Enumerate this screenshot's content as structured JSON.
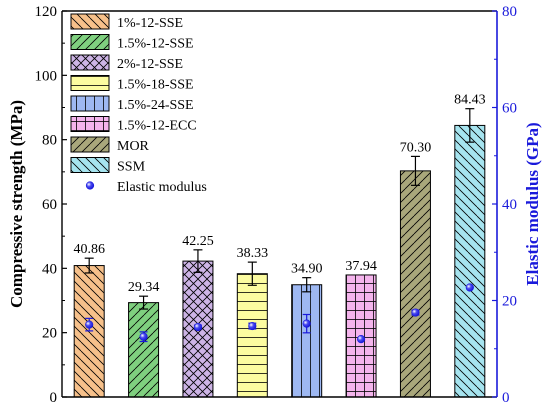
{
  "chart_data": {
    "type": "bar",
    "categories": [
      "1%-12-SSE",
      "1.5%-12-SSE",
      "2%-12-SSE",
      "1.5%-18-SSE",
      "1.5%-24-SSE",
      "1.5%-12-ECC",
      "MOR",
      "SSM"
    ],
    "series": [
      {
        "name": "",
        "axis": "left",
        "values": [
          40.86,
          29.34,
          42.25,
          38.33,
          34.9,
          37.94,
          70.3,
          84.43
        ],
        "value_labels": [
          "40.86",
          "29.34",
          "42.25",
          "38.33",
          "34.90",
          "37.94",
          "70.30",
          "84.43"
        ],
        "errors": [
          2.3,
          2.0,
          3.5,
          3.6,
          2.2,
          0,
          4.5,
          5.2
        ]
      },
      {
        "name": "Elastic modulus",
        "axis": "right",
        "values": [
          15.0,
          12.5,
          14.5,
          14.7,
          15.2,
          12.0,
          17.5,
          22.7
        ],
        "errors": [
          1.3,
          1.0,
          0.4,
          0.6,
          1.9,
          0,
          0.5,
          0
        ]
      }
    ],
    "legend": {
      "placement": "top-left",
      "entries": [
        {
          "label": "1%-12-SSE",
          "fill": "#f6c08a",
          "pattern": "diag-down"
        },
        {
          "label": "1.5%-12-SSE",
          "fill": "#7fd07f",
          "pattern": "diag-up"
        },
        {
          "label": "2%-12-SSE",
          "fill": "#cdb4e6",
          "pattern": "cross"
        },
        {
          "label": "1.5%-18-SSE",
          "fill": "#fcfca0",
          "pattern": "horizontal"
        },
        {
          "label": "1.5%-24-SSE",
          "fill": "#9eb8f2",
          "pattern": "vertical"
        },
        {
          "label": "1.5%-12-ECC",
          "fill": "#f4b4ec",
          "pattern": "grid"
        },
        {
          "label": "MOR",
          "fill": "#a9a77b",
          "pattern": "diag-up"
        },
        {
          "label": "SSM",
          "fill": "#a6e4ef",
          "pattern": "diag-down"
        },
        {
          "label": "Elastic modulus",
          "marker": "sphere"
        }
      ]
    },
    "ylabel": "Compressive strength (MPa)",
    "ylabel_right": "Elastic modulus (GPa)",
    "ylim": [
      0,
      120
    ],
    "yticks": [
      0,
      20,
      40,
      60,
      80,
      100,
      120
    ],
    "ylim_right": [
      0,
      80
    ],
    "yticks_right": [
      0,
      20,
      40,
      60,
      80
    ],
    "grid": false,
    "colors": {
      "left_axis": "#000000",
      "right_axis": "#1a1adb",
      "marker": "#1a1adb"
    }
  }
}
